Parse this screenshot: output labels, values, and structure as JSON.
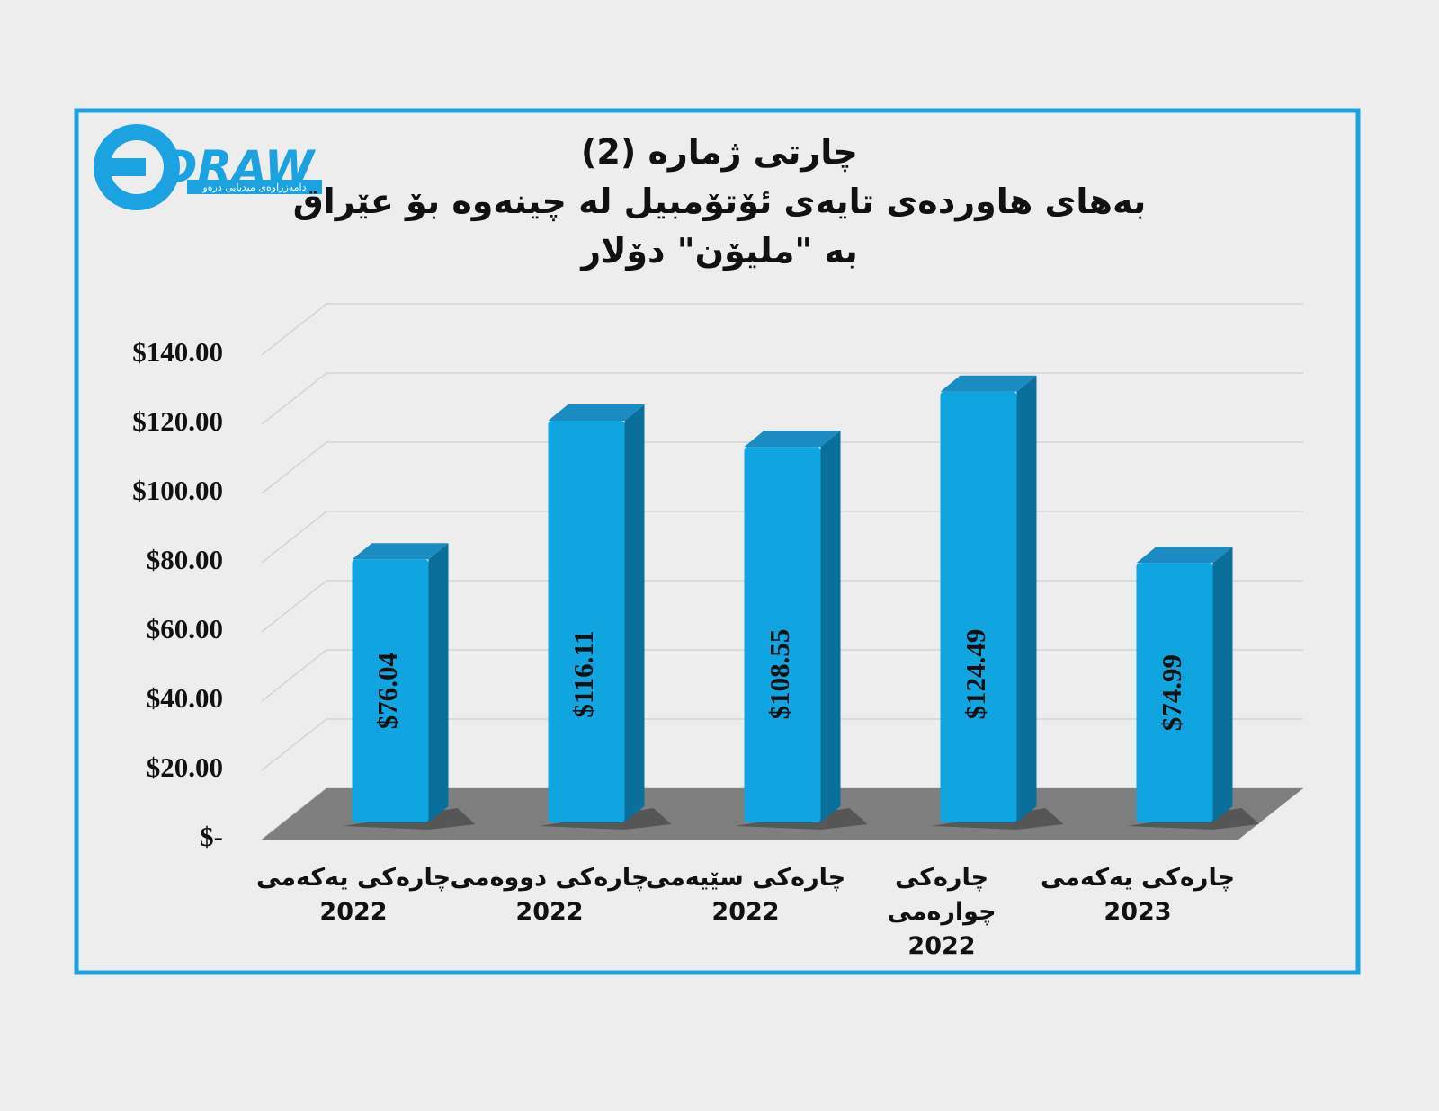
{
  "logo": {
    "text": "DRAW",
    "tagline": "دامەزراوەی میدیایی درەو"
  },
  "chart_data": {
    "type": "bar3d",
    "title": "چارتی ژمارە (2)\nبەهای هاوردەی تایەی ئۆتۆمبیل لە چینەوە بۆ عێراق\nبە \"ملیۆن\" دۆلار",
    "categories": [
      "چارەکی یەکەمی\n2022",
      "چارەکی دووەمی\n2022",
      "چارەکی سێیەمی\n2022",
      "چارەکی چوارەمی\n2022",
      "چارەکی یەکەمی\n2023"
    ],
    "values": [
      76.04,
      116.11,
      108.55,
      124.49,
      74.99
    ],
    "value_labels": [
      "$76.04",
      "$116.11",
      "$108.55",
      "$124.49",
      "$74.99"
    ],
    "color": "#0ea5e0",
    "ylim": [
      0,
      140
    ],
    "yticks": [
      {
        "value": 0,
        "label": "$-"
      },
      {
        "value": 20,
        "label": "$20.00"
      },
      {
        "value": 40,
        "label": "$40.00"
      },
      {
        "value": 60,
        "label": "$60.00"
      },
      {
        "value": 80,
        "label": "$80.00"
      },
      {
        "value": 100,
        "label": "$100.00"
      },
      {
        "value": 120,
        "label": "$120.00"
      },
      {
        "value": 140,
        "label": "$140.00"
      }
    ],
    "grid": true
  }
}
